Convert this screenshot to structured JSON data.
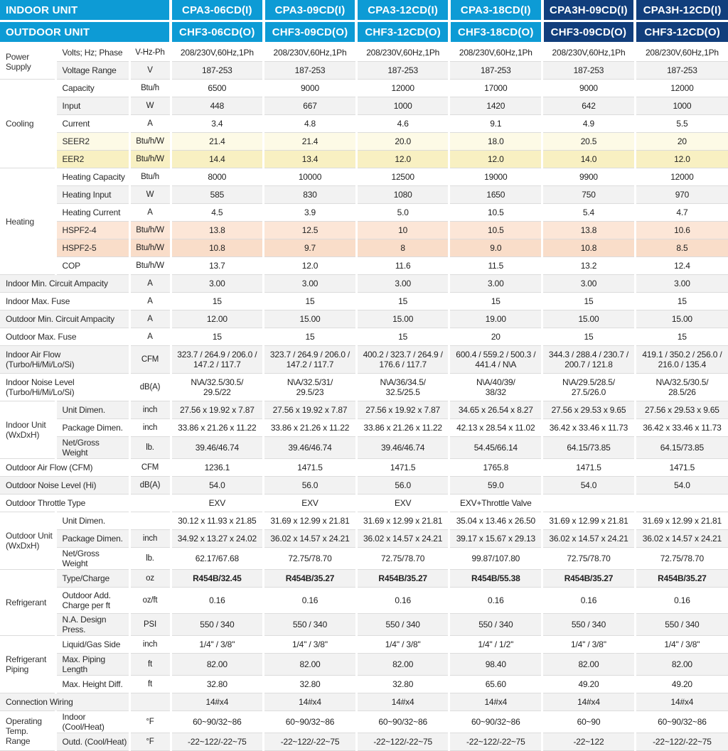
{
  "header": {
    "indoor_label": "INDOOR UNIT",
    "outdoor_label": "OUTDOOR UNIT",
    "indoor_models": [
      "CPA3-06CD(I)",
      "CPA3-09CD(I)",
      "CPA3-12CD(I)",
      "CPA3-18CD(I)",
      "CPA3H-09CD(I)",
      "CPA3H-12CD(I)"
    ],
    "outdoor_models": [
      "CHF3-06CD(O)",
      "CHF3-09CD(O)",
      "CHF3-12CD(O)",
      "CHF3-18CD(O)",
      "CHF3-09CD(O)",
      "CHF3-12CD(O)"
    ],
    "model_themes": [
      "light",
      "light",
      "light",
      "light",
      "dark",
      "dark"
    ]
  },
  "colors": {
    "header_light_blue": "#0d9bd5",
    "header_dark_navy": "#113e7c",
    "stripe_gray": "#f2f2f2",
    "seer_highlight": "#fdfae6",
    "eer_highlight": "#f8f0c2",
    "hspf4_highlight": "#fce6d7",
    "hspf5_highlight": "#f9ddc9"
  },
  "rows": [
    {
      "group": "Power Supply",
      "span": 2,
      "label": "Volts; Hz; Phase",
      "unit": "V-Hz-Ph",
      "bg": "white",
      "values": [
        "208/230V,60Hz,1Ph",
        "208/230V,60Hz,1Ph",
        "208/230V,60Hz,1Ph",
        "208/230V,60Hz,1Ph",
        "208/230V,60Hz,1Ph",
        "208/230V,60Hz,1Ph"
      ]
    },
    {
      "label": "Voltage Range",
      "unit": "V",
      "bg": "gray",
      "values": [
        "187-253",
        "187-253",
        "187-253",
        "187-253",
        "187-253",
        "187-253"
      ]
    },
    {
      "group": "Cooling",
      "span": 5,
      "label": "Capacity",
      "unit": "Btu/h",
      "bg": "white",
      "section": true,
      "values": [
        "6500",
        "9000",
        "12000",
        "17000",
        "9000",
        "12000"
      ]
    },
    {
      "label": "Input",
      "unit": "W",
      "bg": "gray",
      "values": [
        "448",
        "667",
        "1000",
        "1420",
        "642",
        "1000"
      ]
    },
    {
      "label": "Current",
      "unit": "A",
      "bg": "white",
      "values": [
        "3.4",
        "4.8",
        "4.6",
        "9.1",
        "4.9",
        "5.5"
      ]
    },
    {
      "label": "SEER2",
      "unit": "Btu/h/W",
      "bg": "seer",
      "values": [
        "21.4",
        "21.4",
        "20.0",
        "18.0",
        "20.5",
        "20"
      ]
    },
    {
      "label": "EER2",
      "unit": "Btu/h/W",
      "bg": "eer",
      "values": [
        "14.4",
        "13.4",
        "12.0",
        "12.0",
        "14.0",
        "12.0"
      ]
    },
    {
      "group": "Heating",
      "span": 6,
      "label": "Heating Capacity",
      "unit": "Btu/h",
      "bg": "white",
      "section": true,
      "values": [
        "8000",
        "10000",
        "12500",
        "19000",
        "9900",
        "12000"
      ]
    },
    {
      "label": "Heating Input",
      "unit": "W",
      "bg": "gray",
      "values": [
        "585",
        "830",
        "1080",
        "1650",
        "750",
        "970"
      ]
    },
    {
      "label": "Heating Current",
      "unit": "A",
      "bg": "white",
      "values": [
        "4.5",
        "3.9",
        "5.0",
        "10.5",
        "5.4",
        "4.7"
      ]
    },
    {
      "label": "HSPF2-4",
      "unit": "Btu/h/W",
      "bg": "hspf",
      "values": [
        "13.8",
        "12.5",
        "10",
        "10.5",
        "13.8",
        "10.6"
      ]
    },
    {
      "label": "HSPF2-5",
      "unit": "Btu/h/W",
      "bg": "hspf2",
      "values": [
        "10.8",
        "9.7",
        "8",
        "9.0",
        "10.8",
        "8.5"
      ]
    },
    {
      "label": "COP",
      "unit": "Btu/h/W",
      "bg": "white",
      "values": [
        "13.7",
        "12.0",
        "11.6",
        "11.5",
        "13.2",
        "12.4"
      ]
    },
    {
      "label": "Indoor Min. Circuit Ampacity",
      "full": true,
      "unit": "A",
      "bg": "gray",
      "section": true,
      "values": [
        "3.00",
        "3.00",
        "3.00",
        "3.00",
        "3.00",
        "3.00"
      ]
    },
    {
      "label": "Indoor Max. Fuse",
      "full": true,
      "unit": "A",
      "bg": "white",
      "values": [
        "15",
        "15",
        "15",
        "15",
        "15",
        "15"
      ]
    },
    {
      "label": "Outdoor Min. Circuit Ampacity",
      "full": true,
      "unit": "A",
      "bg": "gray",
      "values": [
        "12.00",
        "15.00",
        "15.00",
        "19.00",
        "15.00",
        "15.00"
      ]
    },
    {
      "label": "Outdoor Max. Fuse",
      "full": true,
      "unit": "A",
      "bg": "white",
      "values": [
        "15",
        "15",
        "15",
        "20",
        "15",
        "15"
      ]
    },
    {
      "label": "Indoor Air Flow\n(Turbo/Hi/Mi/Lo/Si)",
      "full": true,
      "unit": "CFM",
      "bg": "gray",
      "tall": true,
      "section": true,
      "values": [
        "323.7 / 264.9 / 206.0 /\n147.2 / 117.7",
        "323.7 / 264.9 / 206.0 /\n147.2 / 117.7",
        "400.2 / 323.7 / 264.9 /\n176.6 / 117.7",
        "600.4 / 559.2 / 500.3 /\n441.4 / N\\A",
        "344.3 / 288.4 / 230.7 /\n200.7 / 121.8",
        "419.1 / 350.2 / 256.0 /\n216.0 / 135.4"
      ]
    },
    {
      "label": "Indoor Noise Level\n(Turbo/Hi/Mi/Lo/Si)",
      "full": true,
      "unit": "dB(A)",
      "bg": "white",
      "tall": true,
      "values": [
        "N\\A/32.5/30.5/\n29.5/22",
        "N\\A/32.5/31/\n29.5/23",
        "N\\A/36/34.5/\n32.5/25.5",
        "N\\A/40/39/\n38/32",
        "N\\A/29.5/28.5/\n27.5/26.0",
        "N\\A/32.5/30.5/\n28.5/26"
      ]
    },
    {
      "group": "Indoor Unit (WxDxH)",
      "span": 3,
      "label": "Unit Dimen.",
      "unit": "inch",
      "bg": "gray",
      "section": true,
      "values": [
        "27.56 x 19.92 x 7.87",
        "27.56 x 19.92 x 7.87",
        "27.56 x 19.92 x 7.87",
        "34.65 x 26.54 x 8.27",
        "27.56 x 29.53 x 9.65",
        "27.56 x 29.53 x 9.65"
      ]
    },
    {
      "label": "Package Dimen.",
      "unit": "inch",
      "bg": "white",
      "values": [
        "33.86 x 21.26 x 11.22",
        "33.86 x 21.26 x 11.22",
        "33.86 x 21.26 x 11.22",
        "42.13 x 28.54 x 11.02",
        "36.42 x 33.46 x 11.73",
        "36.42 x 33.46 x 11.73"
      ]
    },
    {
      "label": "Net/Gross Weight",
      "unit": "lb.",
      "bg": "gray",
      "values": [
        "39.46/46.74",
        "39.46/46.74",
        "39.46/46.74",
        "54.45/66.14",
        "64.15/73.85",
        "64.15/73.85"
      ]
    },
    {
      "label": "Outdoor Air Flow (CFM)",
      "full": true,
      "unit": "CFM",
      "bg": "white",
      "section": true,
      "values": [
        "1236.1",
        "1471.5",
        "1471.5",
        "1765.8",
        "1471.5",
        "1471.5"
      ]
    },
    {
      "label": "Outdoor Noise Level (Hi)",
      "full": true,
      "unit": "dB(A)",
      "bg": "gray",
      "values": [
        "54.0",
        "56.0",
        "56.0",
        "59.0",
        "54.0",
        "54.0"
      ]
    },
    {
      "label": "Outdoor Throttle Type",
      "full": true,
      "unit": "",
      "bg": "white",
      "values": [
        "EXV",
        "EXV",
        "EXV",
        "EXV+Throttle Valve",
        "",
        ""
      ]
    },
    {
      "group": "Outdoor Unit (WxDxH)",
      "span": 3,
      "label": "Unit Dimen.",
      "unit": "",
      "bg": "white",
      "section": true,
      "values": [
        "30.12 x 11.93 x 21.85",
        "31.69 x 12.99 x 21.81",
        "31.69 x 12.99 x 21.81",
        "35.04 x 13.46 x 26.50",
        "31.69 x 12.99 x 21.81",
        "31.69 x 12.99 x 21.81"
      ]
    },
    {
      "label": "Package Dimen.",
      "unit": "inch",
      "bg": "gray",
      "values": [
        "34.92 x 13.27 x 24.02",
        "36.02 x 14.57 x 24.21",
        "36.02 x 14.57 x 24.21",
        "39.17 x 15.67 x 29.13",
        "36.02 x 14.57 x 24.21",
        "36.02 x 14.57 x 24.21"
      ]
    },
    {
      "label": "Net/Gross Weight",
      "unit": "lb.",
      "bg": "white",
      "values": [
        "62.17/67.68",
        "72.75/78.70",
        "72.75/78.70",
        "99.87/107.80",
        "72.75/78.70",
        "72.75/78.70"
      ]
    },
    {
      "group": "Refrigerant",
      "span": 3,
      "label": "Type/Charge",
      "unit": "oz",
      "bg": "gray",
      "section": true,
      "bold": true,
      "values": [
        "R454B/32.45",
        "R454B/35.27",
        "R454B/35.27",
        "R454B/55.38",
        "R454B/35.27",
        "R454B/35.27"
      ]
    },
    {
      "label": "Outdoor Add.\nCharge per ft",
      "unit": "oz/ft",
      "bg": "white",
      "mtall": true,
      "values": [
        "0.16",
        "0.16",
        "0.16",
        "0.16",
        "0.16",
        "0.16"
      ]
    },
    {
      "label": "N.A. Design Press.",
      "unit": "PSI",
      "bg": "gray",
      "values": [
        "550 / 340",
        "550 / 340",
        "550 / 340",
        "550 / 340",
        "550 / 340",
        "550 / 340"
      ]
    },
    {
      "group": "Refrigerant Piping",
      "span": 3,
      "label": "Liquid/Gas Side",
      "unit": "inch",
      "bg": "white",
      "section": true,
      "values": [
        "1/4'' / 3/8''",
        "1/4'' / 3/8''",
        "1/4'' / 3/8''",
        "1/4'' / 1/2''",
        "1/4'' / 3/8''",
        "1/4'' / 3/8''"
      ]
    },
    {
      "label": "Max. Piping Length",
      "unit": "ft",
      "bg": "gray",
      "values": [
        "82.00",
        "82.00",
        "82.00",
        "98.40",
        "82.00",
        "82.00"
      ]
    },
    {
      "label": "Max. Height Diff.",
      "unit": "ft",
      "bg": "white",
      "values": [
        "32.80",
        "32.80",
        "32.80",
        "65.60",
        "49.20",
        "49.20"
      ]
    },
    {
      "label": "Connection Wiring",
      "full": true,
      "unit": "",
      "bg": "gray",
      "section": true,
      "values": [
        "14#x4",
        "14#x4",
        "14#x4",
        "14#x4",
        "14#x4",
        "14#x4"
      ]
    },
    {
      "group": "Operating Temp. Range",
      "span": 2,
      "label": "Indoor (Cool/Heat)",
      "unit": "°F",
      "bg": "white",
      "section": true,
      "values": [
        "60~90/32~86",
        "60~90/32~86",
        "60~90/32~86",
        "60~90/32~86",
        "60~90",
        "60~90/32~86"
      ]
    },
    {
      "label": "Outd. (Cool/Heat)",
      "unit": "°F",
      "bg": "gray",
      "values": [
        "-22~122/-22~75",
        "-22~122/-22~75",
        "-22~122/-22~75",
        "-22~122/-22~75",
        "-22~122",
        "-22~122/-22~75"
      ]
    }
  ]
}
